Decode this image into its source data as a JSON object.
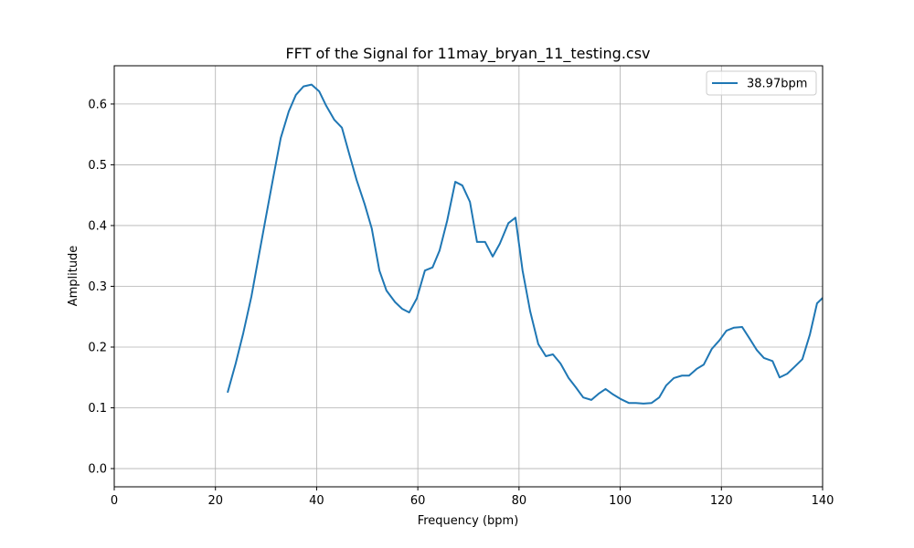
{
  "chart_data": {
    "type": "line",
    "title": "FFT of the Signal for 11may_bryan_11_testing.csv",
    "xlabel": "Frequency (bpm)",
    "ylabel": "Amplitude",
    "xlim": [
      0,
      140
    ],
    "xticks": [
      0,
      20,
      40,
      60,
      80,
      100,
      120,
      140
    ],
    "ylim": [
      -0.03,
      0.663
    ],
    "yticks": [
      {
        "value": 0,
        "label": "0.0"
      },
      0.1,
      0.2,
      0.3,
      0.4,
      0.5,
      0.6
    ],
    "grid": true,
    "legend": "upper right",
    "series": [
      {
        "name": "38.97bpm",
        "color": "#1f77b4",
        "x": [
          22.4,
          24.0,
          25.5,
          27.1,
          28.5,
          30.0,
          31.4,
          32.9,
          34.5,
          35.9,
          37.4,
          39.0,
          40.5,
          41.9,
          43.5,
          45.0,
          46.4,
          47.9,
          49.5,
          50.9,
          52.4,
          53.8,
          55.5,
          56.9,
          58.3,
          59.8,
          61.4,
          62.9,
          64.3,
          65.8,
          67.4,
          68.8,
          70.3,
          71.7,
          73.3,
          74.8,
          76.2,
          77.9,
          79.3,
          80.7,
          82.2,
          83.8,
          85.3,
          86.7,
          88.2,
          89.8,
          91.2,
          92.7,
          94.3,
          95.7,
          97.1,
          98.6,
          100.2,
          101.7,
          103.1,
          104.6,
          106.2,
          107.7,
          109.1,
          110.6,
          112.2,
          113.6,
          115.1,
          116.5,
          118.1,
          119.6,
          121.0,
          122.5,
          124.1,
          125.5,
          127.0,
          128.4,
          130.1,
          131.5,
          133.0,
          134.4,
          136.0,
          137.5,
          138.9,
          140.4
        ],
        "values": [
          0.125,
          0.173,
          0.223,
          0.283,
          0.347,
          0.415,
          0.478,
          0.544,
          0.588,
          0.615,
          0.629,
          0.632,
          0.621,
          0.597,
          0.574,
          0.561,
          0.519,
          0.475,
          0.435,
          0.395,
          0.326,
          0.293,
          0.274,
          0.263,
          0.257,
          0.28,
          0.326,
          0.331,
          0.359,
          0.408,
          0.472,
          0.466,
          0.439,
          0.373,
          0.373,
          0.349,
          0.37,
          0.404,
          0.413,
          0.326,
          0.259,
          0.205,
          0.185,
          0.188,
          0.173,
          0.149,
          0.134,
          0.117,
          0.113,
          0.123,
          0.131,
          0.122,
          0.114,
          0.108,
          0.108,
          0.107,
          0.108,
          0.117,
          0.137,
          0.149,
          0.153,
          0.153,
          0.164,
          0.171,
          0.197,
          0.211,
          0.227,
          0.232,
          0.233,
          0.215,
          0.195,
          0.182,
          0.177,
          0.15,
          0.156,
          0.167,
          0.18,
          0.221,
          0.272,
          0.284
        ]
      }
    ]
  }
}
